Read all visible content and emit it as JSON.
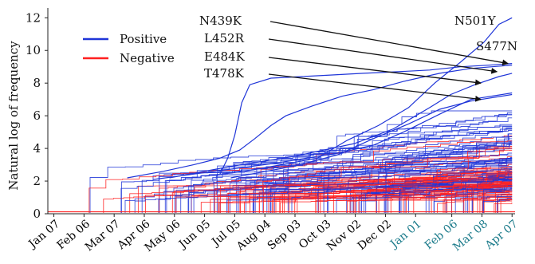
{
  "chart_data": {
    "type": "line",
    "title": "",
    "xlabel": "",
    "ylabel": "Natural log of frequency",
    "ylim": [
      0,
      12.6
    ],
    "yticks": [
      0,
      2,
      4,
      6,
      8,
      10,
      12
    ],
    "xlim": [
      "2020-01-01",
      "2021-04-10"
    ],
    "xticks": [
      {
        "label": "Jan 07",
        "date": "2020-01-07",
        "color": "#000000"
      },
      {
        "label": "Feb 06",
        "date": "2020-02-06",
        "color": "#000000"
      },
      {
        "label": "Mar 07",
        "date": "2020-03-07",
        "color": "#000000"
      },
      {
        "label": "Apr 06",
        "date": "2020-04-06",
        "color": "#000000"
      },
      {
        "label": "May 06",
        "date": "2020-05-06",
        "color": "#000000"
      },
      {
        "label": "Jun 05",
        "date": "2020-06-05",
        "color": "#000000"
      },
      {
        "label": "Jul 05",
        "date": "2020-07-05",
        "color": "#000000"
      },
      {
        "label": "Aug 04",
        "date": "2020-08-04",
        "color": "#000000"
      },
      {
        "label": "Sep 03",
        "date": "2020-09-03",
        "color": "#000000"
      },
      {
        "label": "Oct 03",
        "date": "2020-10-03",
        "color": "#000000"
      },
      {
        "label": "Nov 02",
        "date": "2020-11-02",
        "color": "#000000"
      },
      {
        "label": "Dec 02",
        "date": "2020-12-02",
        "color": "#000000"
      },
      {
        "label": "Jan 01",
        "date": "2021-01-01",
        "color": "#1a7a8a"
      },
      {
        "label": "Feb 06",
        "date": "2021-02-06",
        "color": "#1a7a8a"
      },
      {
        "label": "Mar 08",
        "date": "2021-03-08",
        "color": "#1a7a8a"
      },
      {
        "label": "Apr 07",
        "date": "2021-04-07",
        "color": "#1a7a8a"
      }
    ],
    "legend": {
      "placement": "top-left",
      "entries": [
        {
          "name": "Positive",
          "color": "#1f35d8"
        },
        {
          "name": "Negative",
          "color": "#ff2020"
        }
      ]
    },
    "series": [
      {
        "name": "N501Y",
        "color": "#1f35d8",
        "points": [
          [
            "2020-06-05",
            2.3
          ],
          [
            "2020-07-15",
            2.6
          ],
          [
            "2020-08-20",
            3.0
          ],
          [
            "2020-09-25",
            3.4
          ],
          [
            "2020-10-25",
            4.5
          ],
          [
            "2020-11-25",
            5.4
          ],
          [
            "2020-12-25",
            6.5
          ],
          [
            "2021-01-20",
            8.0
          ],
          [
            "2021-02-15",
            9.3
          ],
          [
            "2021-03-10",
            10.5
          ],
          [
            "2021-03-25",
            11.6
          ],
          [
            "2021-04-07",
            12.0
          ]
        ]
      },
      {
        "name": "S477N",
        "color": "#1f35d8",
        "points": [
          [
            "2020-06-20",
            2.4
          ],
          [
            "2020-06-28",
            3.4
          ],
          [
            "2020-07-05",
            4.8
          ],
          [
            "2020-07-12",
            6.8
          ],
          [
            "2020-07-20",
            7.9
          ],
          [
            "2020-08-10",
            8.3
          ],
          [
            "2020-09-10",
            8.4
          ],
          [
            "2020-10-10",
            8.5
          ],
          [
            "2020-11-10",
            8.6
          ],
          [
            "2020-12-15",
            8.7
          ],
          [
            "2021-01-15",
            8.8
          ],
          [
            "2021-02-15",
            9.0
          ],
          [
            "2021-03-15",
            9.1
          ],
          [
            "2021-04-07",
            9.2
          ]
        ]
      },
      {
        "name": "N439K",
        "color": "#1f35d8",
        "points": [
          [
            "2020-03-20",
            2.2
          ],
          [
            "2020-04-25",
            2.6
          ],
          [
            "2020-05-25",
            3.0
          ],
          [
            "2020-06-20",
            3.4
          ],
          [
            "2020-07-10",
            3.9
          ],
          [
            "2020-07-25",
            4.6
          ],
          [
            "2020-08-10",
            5.4
          ],
          [
            "2020-08-25",
            6.0
          ],
          [
            "2020-09-20",
            6.6
          ],
          [
            "2020-10-20",
            7.2
          ],
          [
            "2020-11-20",
            7.6
          ],
          [
            "2020-12-20",
            8.1
          ],
          [
            "2021-01-25",
            8.6
          ],
          [
            "2021-02-25",
            8.9
          ],
          [
            "2021-04-07",
            9.1
          ]
        ]
      },
      {
        "name": "L452R",
        "color": "#1f35d8",
        "points": [
          [
            "2020-05-01",
            2.2
          ],
          [
            "2020-07-01",
            2.9
          ],
          [
            "2020-09-01",
            3.5
          ],
          [
            "2020-11-01",
            4.3
          ],
          [
            "2020-12-10",
            5.2
          ],
          [
            "2021-01-15",
            6.5
          ],
          [
            "2021-02-05",
            7.3
          ],
          [
            "2021-03-01",
            7.9
          ],
          [
            "2021-03-25",
            8.4
          ],
          [
            "2021-04-07",
            8.6
          ]
        ]
      },
      {
        "name": "E484K",
        "color": "#1f35d8",
        "points": [
          [
            "2020-04-15",
            2.1
          ],
          [
            "2020-06-15",
            2.6
          ],
          [
            "2020-08-15",
            3.1
          ],
          [
            "2020-10-15",
            3.7
          ],
          [
            "2020-11-20",
            4.2
          ],
          [
            "2020-12-20",
            5.0
          ],
          [
            "2021-01-25",
            6.1
          ],
          [
            "2021-02-25",
            7.0
          ],
          [
            "2021-04-07",
            7.4
          ]
        ]
      },
      {
        "name": "T478K",
        "color": "#1f35d8",
        "points": [
          [
            "2020-07-01",
            2.2
          ],
          [
            "2020-09-01",
            2.9
          ],
          [
            "2020-10-15",
            3.6
          ],
          [
            "2020-11-20",
            4.6
          ],
          [
            "2020-12-25",
            5.5
          ],
          [
            "2021-01-25",
            6.4
          ],
          [
            "2021-02-25",
            6.9
          ],
          [
            "2021-04-07",
            7.3
          ]
        ]
      }
    ],
    "annotations": [
      {
        "text": "N501Y",
        "target": {
          "date": "2021-04-07",
          "y": 12.0
        },
        "arrow": false
      },
      {
        "text": "S477N",
        "target": {
          "date": "2021-04-07",
          "y": 9.2
        },
        "arrow": false
      },
      {
        "text": "N439K",
        "target": {
          "date": "2021-04-03",
          "y": 9.2
        },
        "arrow": true
      },
      {
        "text": "L452R",
        "target": {
          "date": "2021-03-23",
          "y": 8.7
        },
        "arrow": true
      },
      {
        "text": "E484K",
        "target": {
          "date": "2021-03-07",
          "y": 8.0
        },
        "arrow": true
      },
      {
        "text": "T478K",
        "target": {
          "date": "2021-03-07",
          "y": 7.0
        },
        "arrow": true
      }
    ]
  }
}
